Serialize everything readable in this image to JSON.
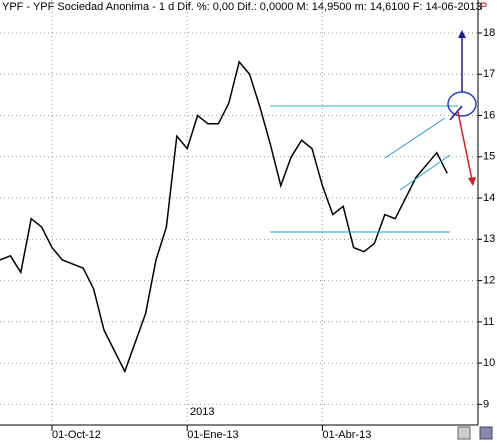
{
  "chart_data": {
    "type": "line",
    "title": "YPF - YPF Sociedad Anonima - 1 d Dif. %: 0,00 Dif.: 0,0000 M: 14,9500 m: 14,6100 F: 14-06-2013",
    "flag": "P",
    "year_label": "2013",
    "categories": [
      null,
      null,
      null,
      null,
      null,
      "01-Oct-12",
      null,
      null,
      null,
      null,
      null,
      null,
      null,
      null,
      null,
      null,
      null,
      null,
      "01-Ene-13",
      null,
      null,
      null,
      null,
      null,
      null,
      null,
      null,
      null,
      null,
      null,
      null,
      "01-Abr-13",
      null,
      null,
      null,
      null,
      null,
      null,
      null,
      null,
      null,
      null,
      null,
      null
    ],
    "series": [
      {
        "color": "#000000",
        "values": [
          12.5,
          12.6,
          12.2,
          13.5,
          13.3,
          12.8,
          12.5,
          12.4,
          12.3,
          11.8,
          10.8,
          10.3,
          9.8,
          10.5,
          11.2,
          12.5,
          13.3,
          15.5,
          15.2,
          16.0,
          15.8,
          15.8,
          16.3,
          17.3,
          17.0,
          16.2,
          15.3,
          14.3,
          15.0,
          15.4,
          15.2,
          14.3,
          13.6,
          13.8,
          12.8,
          12.7,
          12.9,
          13.6,
          13.5,
          14.0,
          14.5,
          14.8,
          15.1,
          14.6
        ]
      }
    ],
    "ylim": [
      8.5,
      18.8
    ],
    "yticks": [
      9,
      10,
      11,
      12,
      13,
      14,
      15,
      16,
      17,
      18
    ],
    "grid": true
  }
}
